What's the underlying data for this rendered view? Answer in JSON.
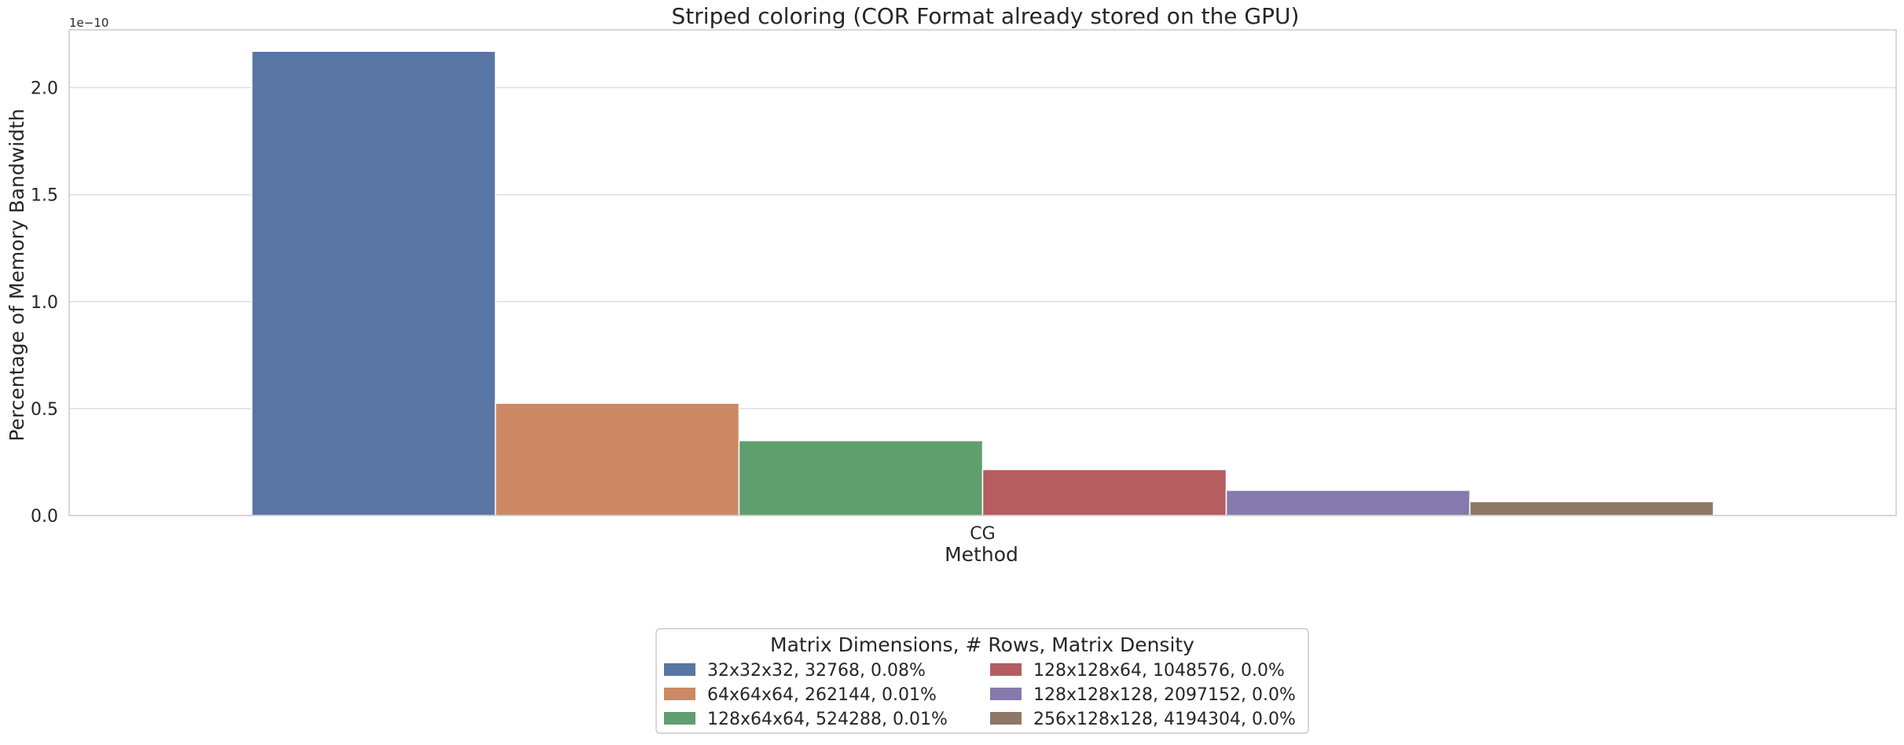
{
  "chart_data": {
    "type": "bar",
    "title": "Striped coloring (COR Format already stored on the GPU)",
    "xlabel": "Method",
    "ylabel": "Percentage of Memory Bandwidth",
    "y_offset_text": "1e−10",
    "categories": [
      "CG"
    ],
    "ylim": [
      0,
      2.27
    ],
    "yticks": [
      0.0,
      0.5,
      1.0,
      1.5,
      2.0
    ],
    "ytick_labels": [
      "0.0",
      "0.5",
      "1.0",
      "1.5",
      "2.0"
    ],
    "grid": true,
    "series": [
      {
        "name": "32x32x32, 32768, 0.08%",
        "values": [
          2.17
        ],
        "color": "#5875a4"
      },
      {
        "name": "64x64x64, 262144, 0.01%",
        "values": [
          0.525
        ],
        "color": "#cc8963"
      },
      {
        "name": "128x64x64, 524288, 0.01%",
        "values": [
          0.35
        ],
        "color": "#5f9e6e"
      },
      {
        "name": "128x128x64, 1048576, 0.0%",
        "values": [
          0.215
        ],
        "color": "#b55d60"
      },
      {
        "name": "128x128x128, 2097152, 0.0%",
        "values": [
          0.118
        ],
        "color": "#857aab"
      },
      {
        "name": "256x128x128, 4194304, 0.0%",
        "values": [
          0.065
        ],
        "color": "#8d7866"
      }
    ],
    "legend": {
      "title": "Matrix Dimensions, # Rows, Matrix Density",
      "placement": "bottom-center",
      "columns": 2
    }
  }
}
